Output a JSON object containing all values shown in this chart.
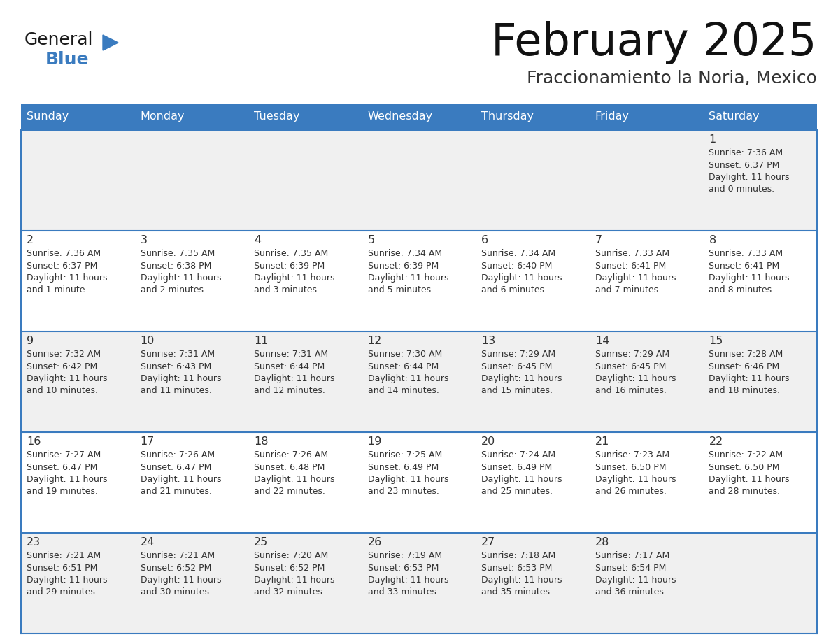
{
  "title": "February 2025",
  "subtitle": "Fraccionamiento la Noria, Mexico",
  "header_color": "#3a7bbf",
  "header_text_color": "#ffffff",
  "cell_bg_white": "#ffffff",
  "cell_bg_gray": "#f0f0f0",
  "border_color": "#3a7bbf",
  "text_color": "#333333",
  "day_names": [
    "Sunday",
    "Monday",
    "Tuesday",
    "Wednesday",
    "Thursday",
    "Friday",
    "Saturday"
  ],
  "logo_color": "#3a7bbf",
  "logo_black": "#1a1a1a",
  "days": [
    {
      "day": 1,
      "col": 6,
      "row": 0,
      "sunrise": "7:36 AM",
      "sunset": "6:37 PM",
      "daylight": "11 hours and 0 minutes."
    },
    {
      "day": 2,
      "col": 0,
      "row": 1,
      "sunrise": "7:36 AM",
      "sunset": "6:37 PM",
      "daylight": "11 hours and 1 minute."
    },
    {
      "day": 3,
      "col": 1,
      "row": 1,
      "sunrise": "7:35 AM",
      "sunset": "6:38 PM",
      "daylight": "11 hours and 2 minutes."
    },
    {
      "day": 4,
      "col": 2,
      "row": 1,
      "sunrise": "7:35 AM",
      "sunset": "6:39 PM",
      "daylight": "11 hours and 3 minutes."
    },
    {
      "day": 5,
      "col": 3,
      "row": 1,
      "sunrise": "7:34 AM",
      "sunset": "6:39 PM",
      "daylight": "11 hours and 5 minutes."
    },
    {
      "day": 6,
      "col": 4,
      "row": 1,
      "sunrise": "7:34 AM",
      "sunset": "6:40 PM",
      "daylight": "11 hours and 6 minutes."
    },
    {
      "day": 7,
      "col": 5,
      "row": 1,
      "sunrise": "7:33 AM",
      "sunset": "6:41 PM",
      "daylight": "11 hours and 7 minutes."
    },
    {
      "day": 8,
      "col": 6,
      "row": 1,
      "sunrise": "7:33 AM",
      "sunset": "6:41 PM",
      "daylight": "11 hours and 8 minutes."
    },
    {
      "day": 9,
      "col": 0,
      "row": 2,
      "sunrise": "7:32 AM",
      "sunset": "6:42 PM",
      "daylight": "11 hours and 10 minutes."
    },
    {
      "day": 10,
      "col": 1,
      "row": 2,
      "sunrise": "7:31 AM",
      "sunset": "6:43 PM",
      "daylight": "11 hours and 11 minutes."
    },
    {
      "day": 11,
      "col": 2,
      "row": 2,
      "sunrise": "7:31 AM",
      "sunset": "6:44 PM",
      "daylight": "11 hours and 12 minutes."
    },
    {
      "day": 12,
      "col": 3,
      "row": 2,
      "sunrise": "7:30 AM",
      "sunset": "6:44 PM",
      "daylight": "11 hours and 14 minutes."
    },
    {
      "day": 13,
      "col": 4,
      "row": 2,
      "sunrise": "7:29 AM",
      "sunset": "6:45 PM",
      "daylight": "11 hours and 15 minutes."
    },
    {
      "day": 14,
      "col": 5,
      "row": 2,
      "sunrise": "7:29 AM",
      "sunset": "6:45 PM",
      "daylight": "11 hours and 16 minutes."
    },
    {
      "day": 15,
      "col": 6,
      "row": 2,
      "sunrise": "7:28 AM",
      "sunset": "6:46 PM",
      "daylight": "11 hours and 18 minutes."
    },
    {
      "day": 16,
      "col": 0,
      "row": 3,
      "sunrise": "7:27 AM",
      "sunset": "6:47 PM",
      "daylight": "11 hours and 19 minutes."
    },
    {
      "day": 17,
      "col": 1,
      "row": 3,
      "sunrise": "7:26 AM",
      "sunset": "6:47 PM",
      "daylight": "11 hours and 21 minutes."
    },
    {
      "day": 18,
      "col": 2,
      "row": 3,
      "sunrise": "7:26 AM",
      "sunset": "6:48 PM",
      "daylight": "11 hours and 22 minutes."
    },
    {
      "day": 19,
      "col": 3,
      "row": 3,
      "sunrise": "7:25 AM",
      "sunset": "6:49 PM",
      "daylight": "11 hours and 23 minutes."
    },
    {
      "day": 20,
      "col": 4,
      "row": 3,
      "sunrise": "7:24 AM",
      "sunset": "6:49 PM",
      "daylight": "11 hours and 25 minutes."
    },
    {
      "day": 21,
      "col": 5,
      "row": 3,
      "sunrise": "7:23 AM",
      "sunset": "6:50 PM",
      "daylight": "11 hours and 26 minutes."
    },
    {
      "day": 22,
      "col": 6,
      "row": 3,
      "sunrise": "7:22 AM",
      "sunset": "6:50 PM",
      "daylight": "11 hours and 28 minutes."
    },
    {
      "day": 23,
      "col": 0,
      "row": 4,
      "sunrise": "7:21 AM",
      "sunset": "6:51 PM",
      "daylight": "11 hours and 29 minutes."
    },
    {
      "day": 24,
      "col": 1,
      "row": 4,
      "sunrise": "7:21 AM",
      "sunset": "6:52 PM",
      "daylight": "11 hours and 30 minutes."
    },
    {
      "day": 25,
      "col": 2,
      "row": 4,
      "sunrise": "7:20 AM",
      "sunset": "6:52 PM",
      "daylight": "11 hours and 32 minutes."
    },
    {
      "day": 26,
      "col": 3,
      "row": 4,
      "sunrise": "7:19 AM",
      "sunset": "6:53 PM",
      "daylight": "11 hours and 33 minutes."
    },
    {
      "day": 27,
      "col": 4,
      "row": 4,
      "sunrise": "7:18 AM",
      "sunset": "6:53 PM",
      "daylight": "11 hours and 35 minutes."
    },
    {
      "day": 28,
      "col": 5,
      "row": 4,
      "sunrise": "7:17 AM",
      "sunset": "6:54 PM",
      "daylight": "11 hours and 36 minutes."
    }
  ]
}
